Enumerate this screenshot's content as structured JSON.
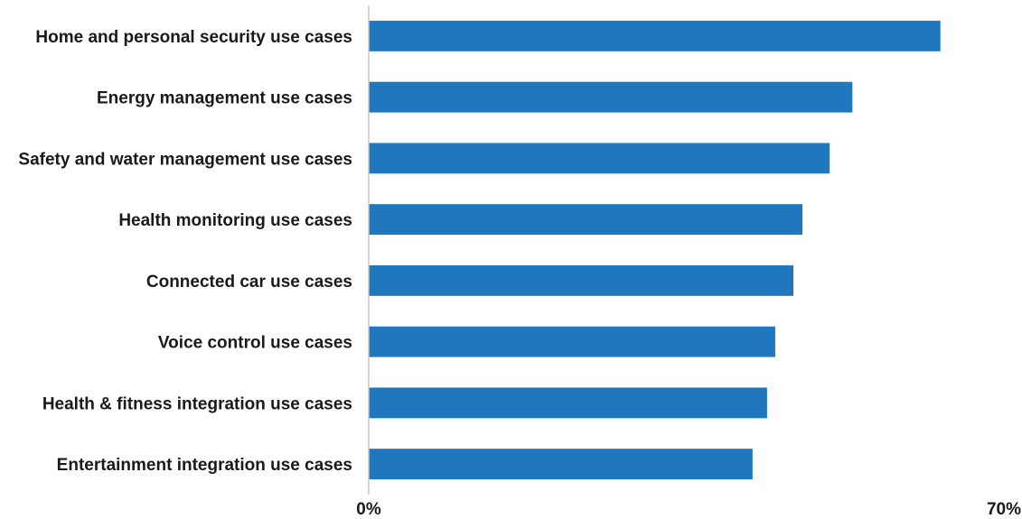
{
  "chart_data": {
    "type": "bar",
    "orientation": "horizontal",
    "categories": [
      "Home and personal security use cases",
      "Energy management use cases",
      "Safety and water management use cases",
      "Health monitoring use cases",
      "Connected car use cases",
      "Voice control use cases",
      "Health & fitness integration use cases",
      "Entertainment integration use cases"
    ],
    "values": [
      63,
      53.3,
      50.8,
      47.8,
      46.8,
      44.8,
      43.9,
      42.3
    ],
    "xlim": [
      0,
      70
    ],
    "x_ticks": [
      "0%",
      "70%"
    ],
    "grid": false,
    "legend": "none",
    "bar_color": "#1f77be",
    "axis_color": "#c8c8c8"
  }
}
